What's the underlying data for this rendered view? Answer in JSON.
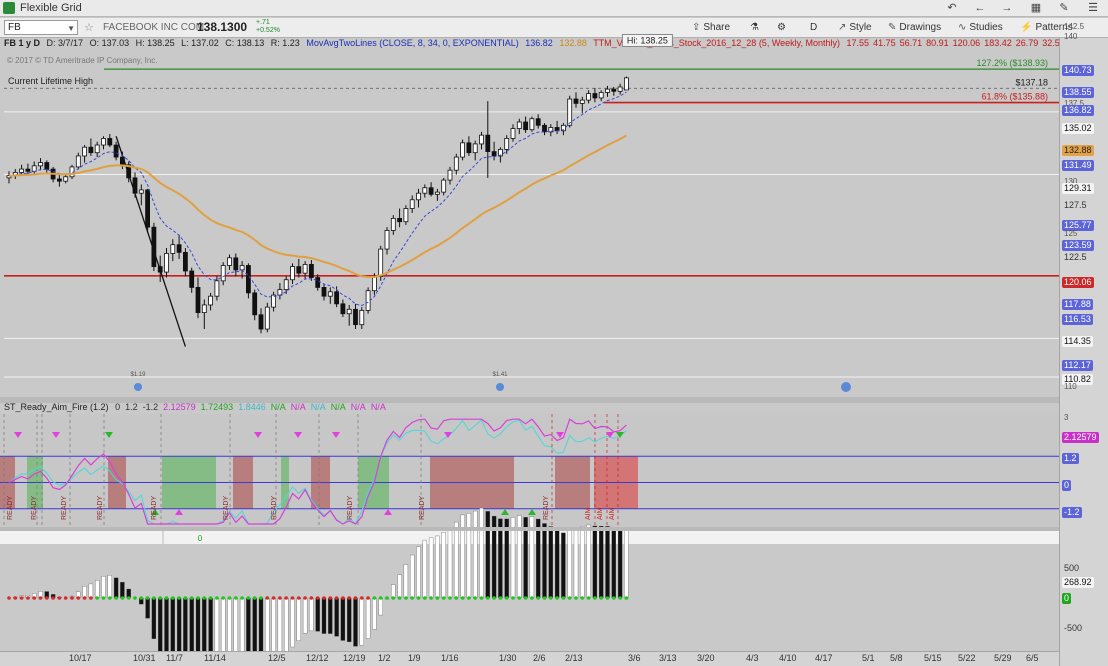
{
  "window": {
    "title": "Flexible Grid"
  },
  "toolbar": {
    "symbol": "FB",
    "company": "FACEBOOK INC COM",
    "last_price": "138.1300",
    "change_abs": "+.71",
    "change_pct": "+0.52%",
    "share": "Share",
    "period": "D",
    "style": "Style",
    "drawings": "Drawings",
    "studies": "Studies",
    "patterns": "Patterns"
  },
  "info": {
    "symbol_period": "FB 1 y D",
    "date": "D: 3/7/17",
    "open": "O: 137.03",
    "high": "H: 138.25",
    "low": "L: 137.02",
    "close": "C: 138.13",
    "range": "R: 1.23",
    "study1": "MovAvgTwoLines (CLOSE, 8, 34, 0, EXPONENTIAL)",
    "study1_v1": "136.82",
    "study1_v2": "132.88",
    "study2": "TTM_Voodoo_Lines_Stock_2016_12_28 (5, Weekly, Monthly)",
    "study2_vals": [
      "17.55",
      "41.75",
      "56.71",
      "80.91",
      "120.06",
      "183.42",
      "26.79",
      "32.51"
    ]
  },
  "copyright": "© 2017 © TD Ameritrade IP Company, Inc.",
  "annotations": {
    "current_high": "Current Lifetime High",
    "hi_tag": "Hi: 138.25",
    "fib_127": "127.2% ($138.93)",
    "fib_price": "$137.18",
    "fib_618": "61.8% ($135.88)",
    "event_1": "$1.19",
    "event_2": "$1.41"
  },
  "study_panel": {
    "name": "ST_Ready_Aim_Fire (1.2)",
    "vals": [
      "0",
      "1.2",
      "-1.2",
      "2.12579",
      "1.72493",
      "1.8446",
      "N/A",
      "N/A",
      "N/A",
      "N/A",
      "N/A",
      "N/A"
    ],
    "ready": "READY",
    "aim": "AIM",
    "zero_readout": "0"
  },
  "right_axis": {
    "main": [
      {
        "text": "142.5",
        "cls": "small"
      },
      {
        "text": "140",
        "cls": "small"
      },
      {
        "text": "140.73",
        "cls": "blue"
      },
      {
        "text": "138.55",
        "cls": "blue"
      },
      {
        "text": "137.5",
        "cls": "small"
      },
      {
        "text": "136.82",
        "cls": "blue"
      },
      {
        "text": "135.02",
        "cls": "box"
      },
      {
        "text": "132.88",
        "cls": "orange"
      },
      {
        "text": "131.49",
        "cls": "blue"
      },
      {
        "text": "130",
        "cls": "small"
      },
      {
        "text": "129.31",
        "cls": "box"
      },
      {
        "text": "127.5",
        "cls": "plain"
      },
      {
        "text": "125.77",
        "cls": "blue"
      },
      {
        "text": "125",
        "cls": "small"
      },
      {
        "text": "123.59",
        "cls": "blue"
      },
      {
        "text": "122.5",
        "cls": "plain"
      },
      {
        "text": "120.06",
        "cls": "red"
      },
      {
        "text": "117.88",
        "cls": "blue"
      },
      {
        "text": "116.53",
        "cls": "blue"
      },
      {
        "text": "114.35",
        "cls": "box"
      },
      {
        "text": "112.17",
        "cls": "blue"
      },
      {
        "text": "110.82",
        "cls": "box"
      },
      {
        "text": "110",
        "cls": "small"
      }
    ],
    "mid": [
      {
        "text": "3",
        "cls": "small"
      },
      {
        "text": "2.12579",
        "cls": "magenta"
      },
      {
        "text": "1.2",
        "cls": "blue"
      },
      {
        "text": "0",
        "cls": "blue"
      },
      {
        "text": "-1.2",
        "cls": "blue"
      }
    ],
    "low": [
      {
        "text": "500",
        "cls": "plain"
      },
      {
        "text": "268.92",
        "cls": "box"
      },
      {
        "text": "0",
        "cls": "green"
      },
      {
        "text": "-500",
        "cls": "plain"
      }
    ]
  },
  "chart_data": {
    "type": "candlestick",
    "title": "FB 1 y D",
    "ylim": [
      110,
      142.5
    ],
    "dates": [
      "10/17",
      "10/31",
      "11/7",
      "11/14",
      "12/5",
      "12/12",
      "12/19",
      "1/2",
      "1/9",
      "1/16",
      "1/30",
      "2/6",
      "2/13",
      "3/6",
      "3/13",
      "3/20",
      "4/3",
      "4/10",
      "4/17",
      "5/1",
      "5/8",
      "5/15",
      "5/22",
      "5/29",
      "6/5"
    ],
    "candles": [
      [
        129.0,
        129.6,
        128.5,
        129.2
      ],
      [
        129.2,
        129.8,
        128.9,
        129.5
      ],
      [
        129.5,
        130.2,
        129.2,
        129.8
      ],
      [
        129.8,
        130.3,
        129.3,
        129.6
      ],
      [
        129.6,
        130.5,
        129.4,
        130.1
      ],
      [
        130.1,
        130.8,
        129.7,
        130.4
      ],
      [
        130.4,
        130.6,
        129.5,
        129.8
      ],
      [
        129.8,
        130.0,
        128.6,
        128.9
      ],
      [
        128.9,
        129.3,
        128.2,
        128.7
      ],
      [
        128.7,
        129.4,
        128.5,
        129.1
      ],
      [
        129.1,
        130.2,
        128.9,
        130.0
      ],
      [
        130.0,
        131.3,
        129.8,
        131.0
      ],
      [
        131.0,
        132.0,
        130.4,
        131.8
      ],
      [
        131.8,
        132.6,
        131.0,
        131.3
      ],
      [
        131.3,
        132.3,
        130.9,
        132.0
      ],
      [
        132.0,
        132.8,
        131.6,
        132.6
      ],
      [
        132.6,
        133.0,
        131.8,
        132.0
      ],
      [
        132.0,
        132.3,
        130.6,
        130.9
      ],
      [
        130.9,
        131.4,
        129.8,
        130.2
      ],
      [
        130.2,
        130.5,
        128.6,
        129.0
      ],
      [
        129.0,
        129.5,
        127.2,
        127.6
      ],
      [
        127.6,
        128.4,
        126.5,
        127.9
      ],
      [
        127.9,
        128.0,
        124.0,
        124.5
      ],
      [
        124.5,
        124.9,
        120.5,
        120.9
      ],
      [
        120.9,
        121.9,
        119.5,
        120.4
      ],
      [
        120.4,
        122.6,
        119.9,
        122.1
      ],
      [
        122.1,
        123.4,
        121.4,
        122.9
      ],
      [
        122.9,
        123.8,
        121.6,
        122.2
      ],
      [
        122.2,
        122.6,
        120.0,
        120.5
      ],
      [
        120.5,
        120.8,
        118.5,
        119.0
      ],
      [
        119.0,
        119.9,
        116.2,
        116.7
      ],
      [
        116.7,
        117.9,
        115.2,
        117.4
      ],
      [
        117.4,
        118.5,
        116.9,
        118.2
      ],
      [
        118.2,
        120.0,
        117.8,
        119.6
      ],
      [
        119.6,
        121.3,
        119.2,
        121.0
      ],
      [
        121.0,
        122.0,
        120.6,
        121.7
      ],
      [
        121.7,
        122.1,
        120.0,
        120.6
      ],
      [
        120.6,
        121.4,
        119.8,
        121.0
      ],
      [
        121.0,
        121.2,
        118.0,
        118.5
      ],
      [
        118.5,
        118.8,
        116.0,
        116.5
      ],
      [
        116.5,
        117.1,
        114.8,
        115.2
      ],
      [
        115.2,
        117.6,
        114.9,
        117.2
      ],
      [
        117.2,
        118.6,
        116.8,
        118.3
      ],
      [
        118.3,
        119.4,
        117.9,
        118.8
      ],
      [
        118.8,
        120.0,
        118.4,
        119.7
      ],
      [
        119.7,
        121.2,
        119.3,
        120.9
      ],
      [
        120.9,
        121.6,
        119.9,
        120.3
      ],
      [
        120.3,
        121.4,
        119.8,
        121.1
      ],
      [
        121.1,
        121.5,
        119.6,
        119.9
      ],
      [
        119.9,
        120.2,
        118.7,
        119.0
      ],
      [
        119.0,
        119.3,
        117.8,
        118.2
      ],
      [
        118.2,
        119.0,
        117.5,
        118.6
      ],
      [
        118.6,
        119.1,
        117.2,
        117.5
      ],
      [
        117.5,
        117.9,
        116.3,
        116.6
      ],
      [
        116.6,
        117.4,
        115.5,
        117.0
      ],
      [
        117.0,
        117.5,
        115.2,
        115.6
      ],
      [
        115.6,
        117.2,
        115.2,
        116.9
      ],
      [
        116.9,
        119.0,
        116.6,
        118.7
      ],
      [
        118.7,
        120.3,
        118.3,
        120.0
      ],
      [
        120.0,
        122.8,
        119.6,
        122.5
      ],
      [
        122.5,
        124.5,
        122.0,
        124.2
      ],
      [
        124.2,
        125.6,
        123.8,
        125.3
      ],
      [
        125.3,
        126.2,
        124.5,
        125.0
      ],
      [
        125.0,
        126.5,
        124.7,
        126.2
      ],
      [
        126.2,
        127.4,
        125.8,
        127.0
      ],
      [
        127.0,
        128.0,
        126.3,
        127.6
      ],
      [
        127.6,
        128.4,
        127.2,
        128.1
      ],
      [
        128.1,
        128.6,
        127.3,
        127.5
      ],
      [
        127.5,
        128.0,
        126.9,
        127.7
      ],
      [
        127.7,
        129.0,
        127.4,
        128.8
      ],
      [
        128.8,
        130.0,
        128.4,
        129.7
      ],
      [
        129.7,
        131.2,
        129.3,
        130.9
      ],
      [
        130.9,
        132.5,
        130.6,
        132.2
      ],
      [
        132.2,
        132.8,
        131.0,
        131.3
      ],
      [
        131.3,
        132.4,
        130.6,
        132.1
      ],
      [
        132.1,
        133.2,
        131.6,
        132.9
      ],
      [
        132.9,
        136.0,
        129.0,
        131.4
      ],
      [
        131.4,
        132.3,
        130.6,
        131.0
      ],
      [
        131.0,
        131.8,
        130.4,
        131.6
      ],
      [
        131.6,
        132.9,
        131.2,
        132.6
      ],
      [
        132.6,
        133.9,
        132.3,
        133.5
      ],
      [
        133.5,
        134.4,
        133.0,
        134.1
      ],
      [
        134.1,
        134.6,
        133.1,
        133.4
      ],
      [
        133.4,
        134.6,
        133.2,
        134.4
      ],
      [
        134.4,
        134.8,
        133.5,
        133.8
      ],
      [
        133.8,
        134.0,
        132.9,
        133.2
      ],
      [
        133.2,
        133.9,
        132.8,
        133.6
      ],
      [
        133.6,
        134.2,
        133.0,
        133.3
      ],
      [
        133.3,
        134.0,
        132.9,
        133.8
      ],
      [
        133.8,
        136.5,
        133.6,
        136.2
      ],
      [
        136.2,
        136.8,
        135.4,
        135.8
      ],
      [
        135.8,
        136.4,
        134.9,
        136.1
      ],
      [
        136.1,
        137.0,
        135.8,
        136.7
      ],
      [
        136.7,
        137.2,
        135.9,
        136.3
      ],
      [
        136.3,
        137.0,
        136.0,
        136.8
      ],
      [
        136.8,
        137.4,
        136.4,
        137.1
      ],
      [
        137.1,
        137.3,
        136.5,
        136.9
      ],
      [
        136.9,
        137.6,
        136.6,
        137.3
      ],
      [
        137.03,
        138.25,
        137.02,
        138.13
      ]
    ],
    "ema8_end": 136.82,
    "ema34_end": 132.88,
    "levels": [
      138.93,
      137.18,
      135.88,
      135.02,
      129.31,
      120.06,
      114.35,
      110.82
    ]
  }
}
